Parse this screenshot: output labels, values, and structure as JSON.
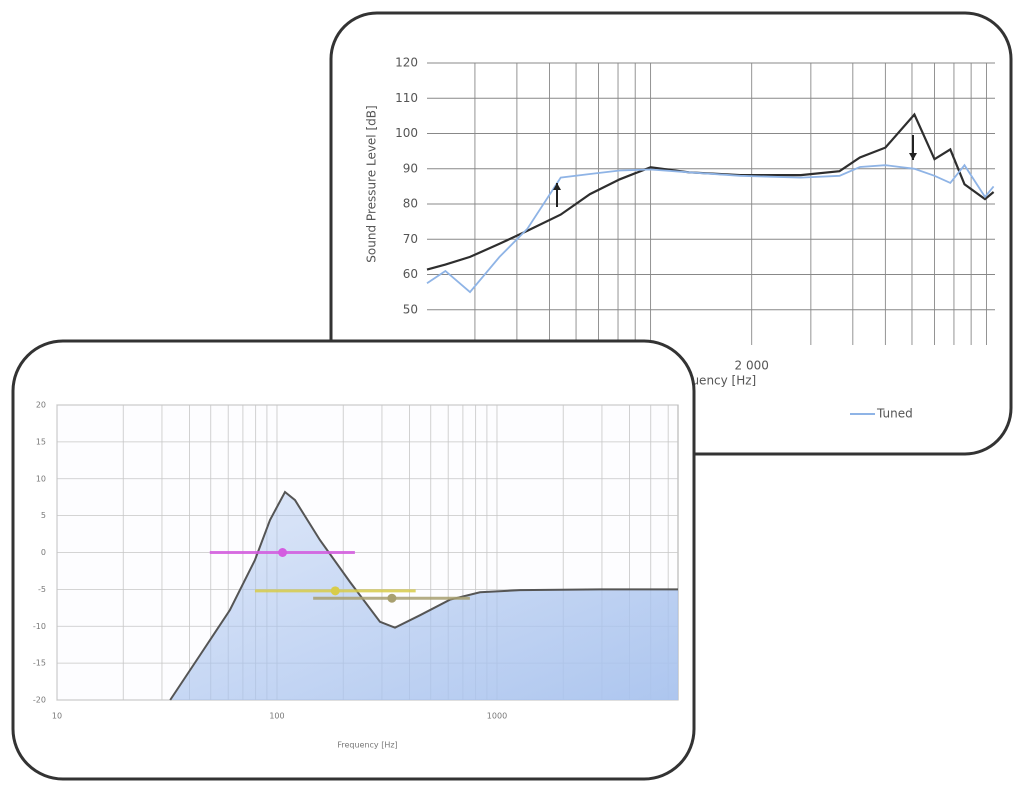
{
  "chart_data": [
    {
      "type": "line",
      "ylabel": "Sound Pressure Level [dB]",
      "xlabel": "Frequency [Hz]",
      "xscale": "log",
      "x": [
        216,
        245,
        290,
        355,
        430,
        540,
        660,
        810,
        1000,
        1300,
        1850,
        2800,
        3650,
        4200,
        5000,
        6100,
        7000,
        7800,
        8600,
        9900,
        10500
      ],
      "series": [
        {
          "color": "#2e2e2e",
          "values": [
            61.4,
            62.8,
            65,
            68.7,
            72.4,
            77,
            82.8,
            87,
            90.4,
            89,
            88.2,
            88.2,
            89.3,
            93.2,
            96,
            105.4,
            92.7,
            95.5,
            85.6,
            81.4,
            83.4
          ]
        },
        {
          "name": "Tuned",
          "color": "#8fb4e6",
          "values": [
            57.5,
            61,
            55,
            65,
            73,
            87.5,
            88.5,
            89.5,
            89.8,
            89,
            88,
            87.5,
            88,
            90.5,
            91,
            90,
            88,
            86,
            91,
            82,
            85
          ]
        }
      ],
      "xlim": [
        216,
        10600
      ],
      "ylim": [
        40,
        120
      ],
      "yticks": [
        50,
        60,
        70,
        80,
        90,
        100,
        110,
        120
      ],
      "xticks": [
        {
          "value": 2000,
          "label": "2 000"
        }
      ],
      "xgrid": [
        300,
        400,
        500,
        600,
        700,
        800,
        900,
        1000,
        3000,
        4000,
        5000,
        6000,
        7000,
        8000,
        9000,
        10000
      ],
      "grid": true
    },
    {
      "type": "area",
      "xlabel": "Frequency [Hz]",
      "xscale": "log",
      "x": [
        32.7,
        44.7,
        61.1,
        79.4,
        92.9,
        108.7,
        120.7,
        156.7,
        214.7,
        294,
        344,
        447,
        611,
        837,
        1273,
        2938,
        6650
      ],
      "values": [
        -20,
        -13.9,
        -7.8,
        -1,
        4.4,
        8.2,
        7.1,
        1.7,
        -4,
        -9.4,
        -10.2,
        -8.5,
        -6.4,
        -5.4,
        -5.1,
        -5,
        -5
      ],
      "color": "#555555",
      "fill": "#a9c3ee",
      "points": [
        {
          "color": "#d45ce0",
          "x": 106,
          "xmin": 49.5,
          "xmax": 226,
          "y": 0
        },
        {
          "color": "#d8cc4a",
          "x": 184,
          "xmin": 79.4,
          "xmax": 427,
          "y": -5.2
        },
        {
          "color": "#a8a070",
          "x": 333,
          "xmin": 146,
          "xmax": 753,
          "y": -6.2
        }
      ],
      "xlim": [
        10,
        6650
      ],
      "ylim": [
        -20,
        20
      ],
      "yticks": [
        -20,
        -15,
        -10,
        -5,
        0,
        5,
        10,
        15,
        20
      ],
      "xticks": [
        10,
        100,
        1000
      ],
      "xgrid": [
        20,
        30,
        40,
        50,
        60,
        70,
        80,
        90,
        200,
        300,
        400,
        500,
        600,
        700,
        800,
        900,
        2000,
        3000,
        4000,
        5000,
        6000
      ],
      "grid": true
    }
  ]
}
